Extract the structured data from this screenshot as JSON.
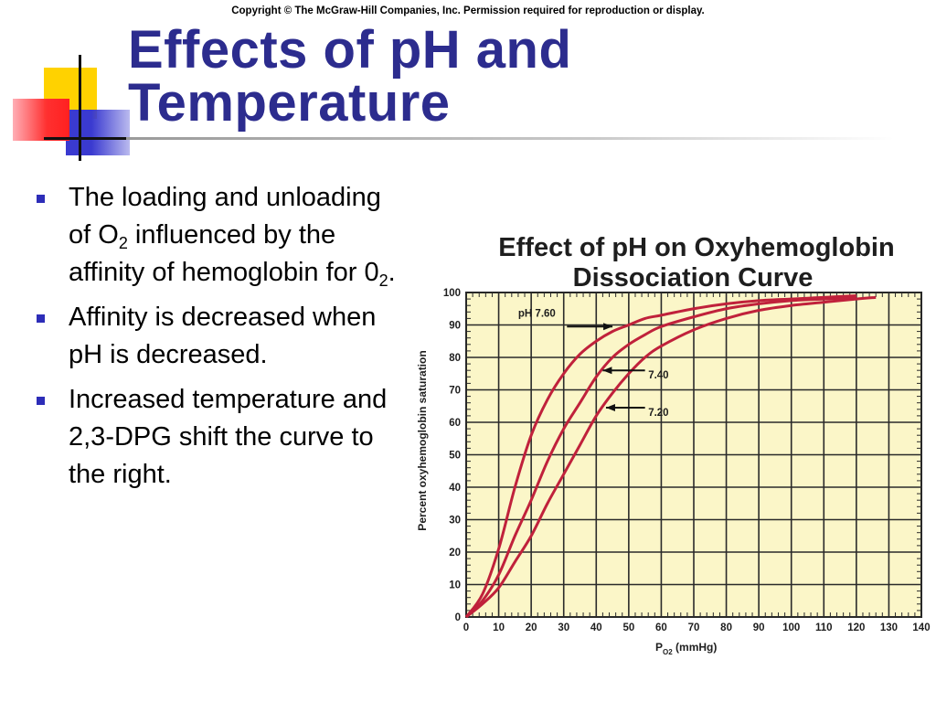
{
  "copyright": "Copyright © The McGraw-Hill Companies, Inc. Permission required for reproduction or display.",
  "slide": {
    "title_line1": "Effects of pH and",
    "title_line2": "Temperature",
    "bullets": [
      {
        "text": "The loading and unloading of O",
        "sub": "2",
        "text2": " influenced by the affinity of hemoglobin for 0",
        "sub2": "2",
        "text3": "."
      },
      {
        "text": "Affinity is decreased when pH is decreased."
      },
      {
        "text": "Increased temperature and 2,3-DPG shift the curve to the right."
      }
    ]
  },
  "colors": {
    "title": "#2c2c8e",
    "bullet": "#2d2db8",
    "plot_bg": "#fbf6c8",
    "curve": "#c0213b"
  },
  "chart_data": {
    "type": "line",
    "title_line1": "Effect of pH on Oxyhemoglobin",
    "title_line2": "Dissociation Curve",
    "xlabel_main": "P",
    "xlabel_sub": "O2",
    "xlabel_unit": " (mmHg)",
    "ylabel": "Percent oxyhemoglobin saturation",
    "xlim": [
      0,
      140
    ],
    "ylim": [
      0,
      100
    ],
    "xticks": [
      0,
      10,
      20,
      30,
      40,
      50,
      60,
      70,
      80,
      90,
      100,
      110,
      120,
      130,
      140
    ],
    "yticks": [
      0,
      10,
      20,
      30,
      40,
      50,
      60,
      70,
      80,
      90,
      100
    ],
    "grid": true,
    "series": [
      {
        "name": "pH 7.60",
        "x": [
          0,
          5,
          10,
          15,
          20,
          25,
          30,
          35,
          40,
          45,
          50,
          55,
          60,
          70,
          80,
          90,
          100,
          110,
          120
        ],
        "y": [
          0,
          7,
          21,
          40,
          56,
          67,
          75,
          81,
          85,
          88,
          90,
          92,
          93,
          95,
          96.5,
          97.5,
          98,
          98.5,
          99
        ]
      },
      {
        "name": "7.40",
        "x": [
          0,
          5,
          10,
          15,
          20,
          25,
          30,
          35,
          40,
          45,
          50,
          55,
          60,
          70,
          80,
          90,
          100,
          110,
          120
        ],
        "y": [
          0,
          5,
          13,
          25,
          36,
          48,
          58,
          66,
          74,
          80,
          84,
          87,
          89.5,
          92.5,
          95,
          96.5,
          97.5,
          98,
          98.5
        ]
      },
      {
        "name": "7.20",
        "x": [
          0,
          5,
          10,
          15,
          20,
          25,
          30,
          35,
          40,
          45,
          50,
          55,
          60,
          70,
          80,
          90,
          100,
          110,
          120,
          126
        ],
        "y": [
          0,
          4,
          9,
          17,
          25,
          35,
          44,
          53,
          62,
          69,
          75,
          80,
          83.5,
          88.5,
          92,
          94.5,
          96,
          97,
          98,
          98.5
        ]
      }
    ],
    "annotations": [
      "pH 7.60",
      "7.40",
      "7.20"
    ]
  }
}
